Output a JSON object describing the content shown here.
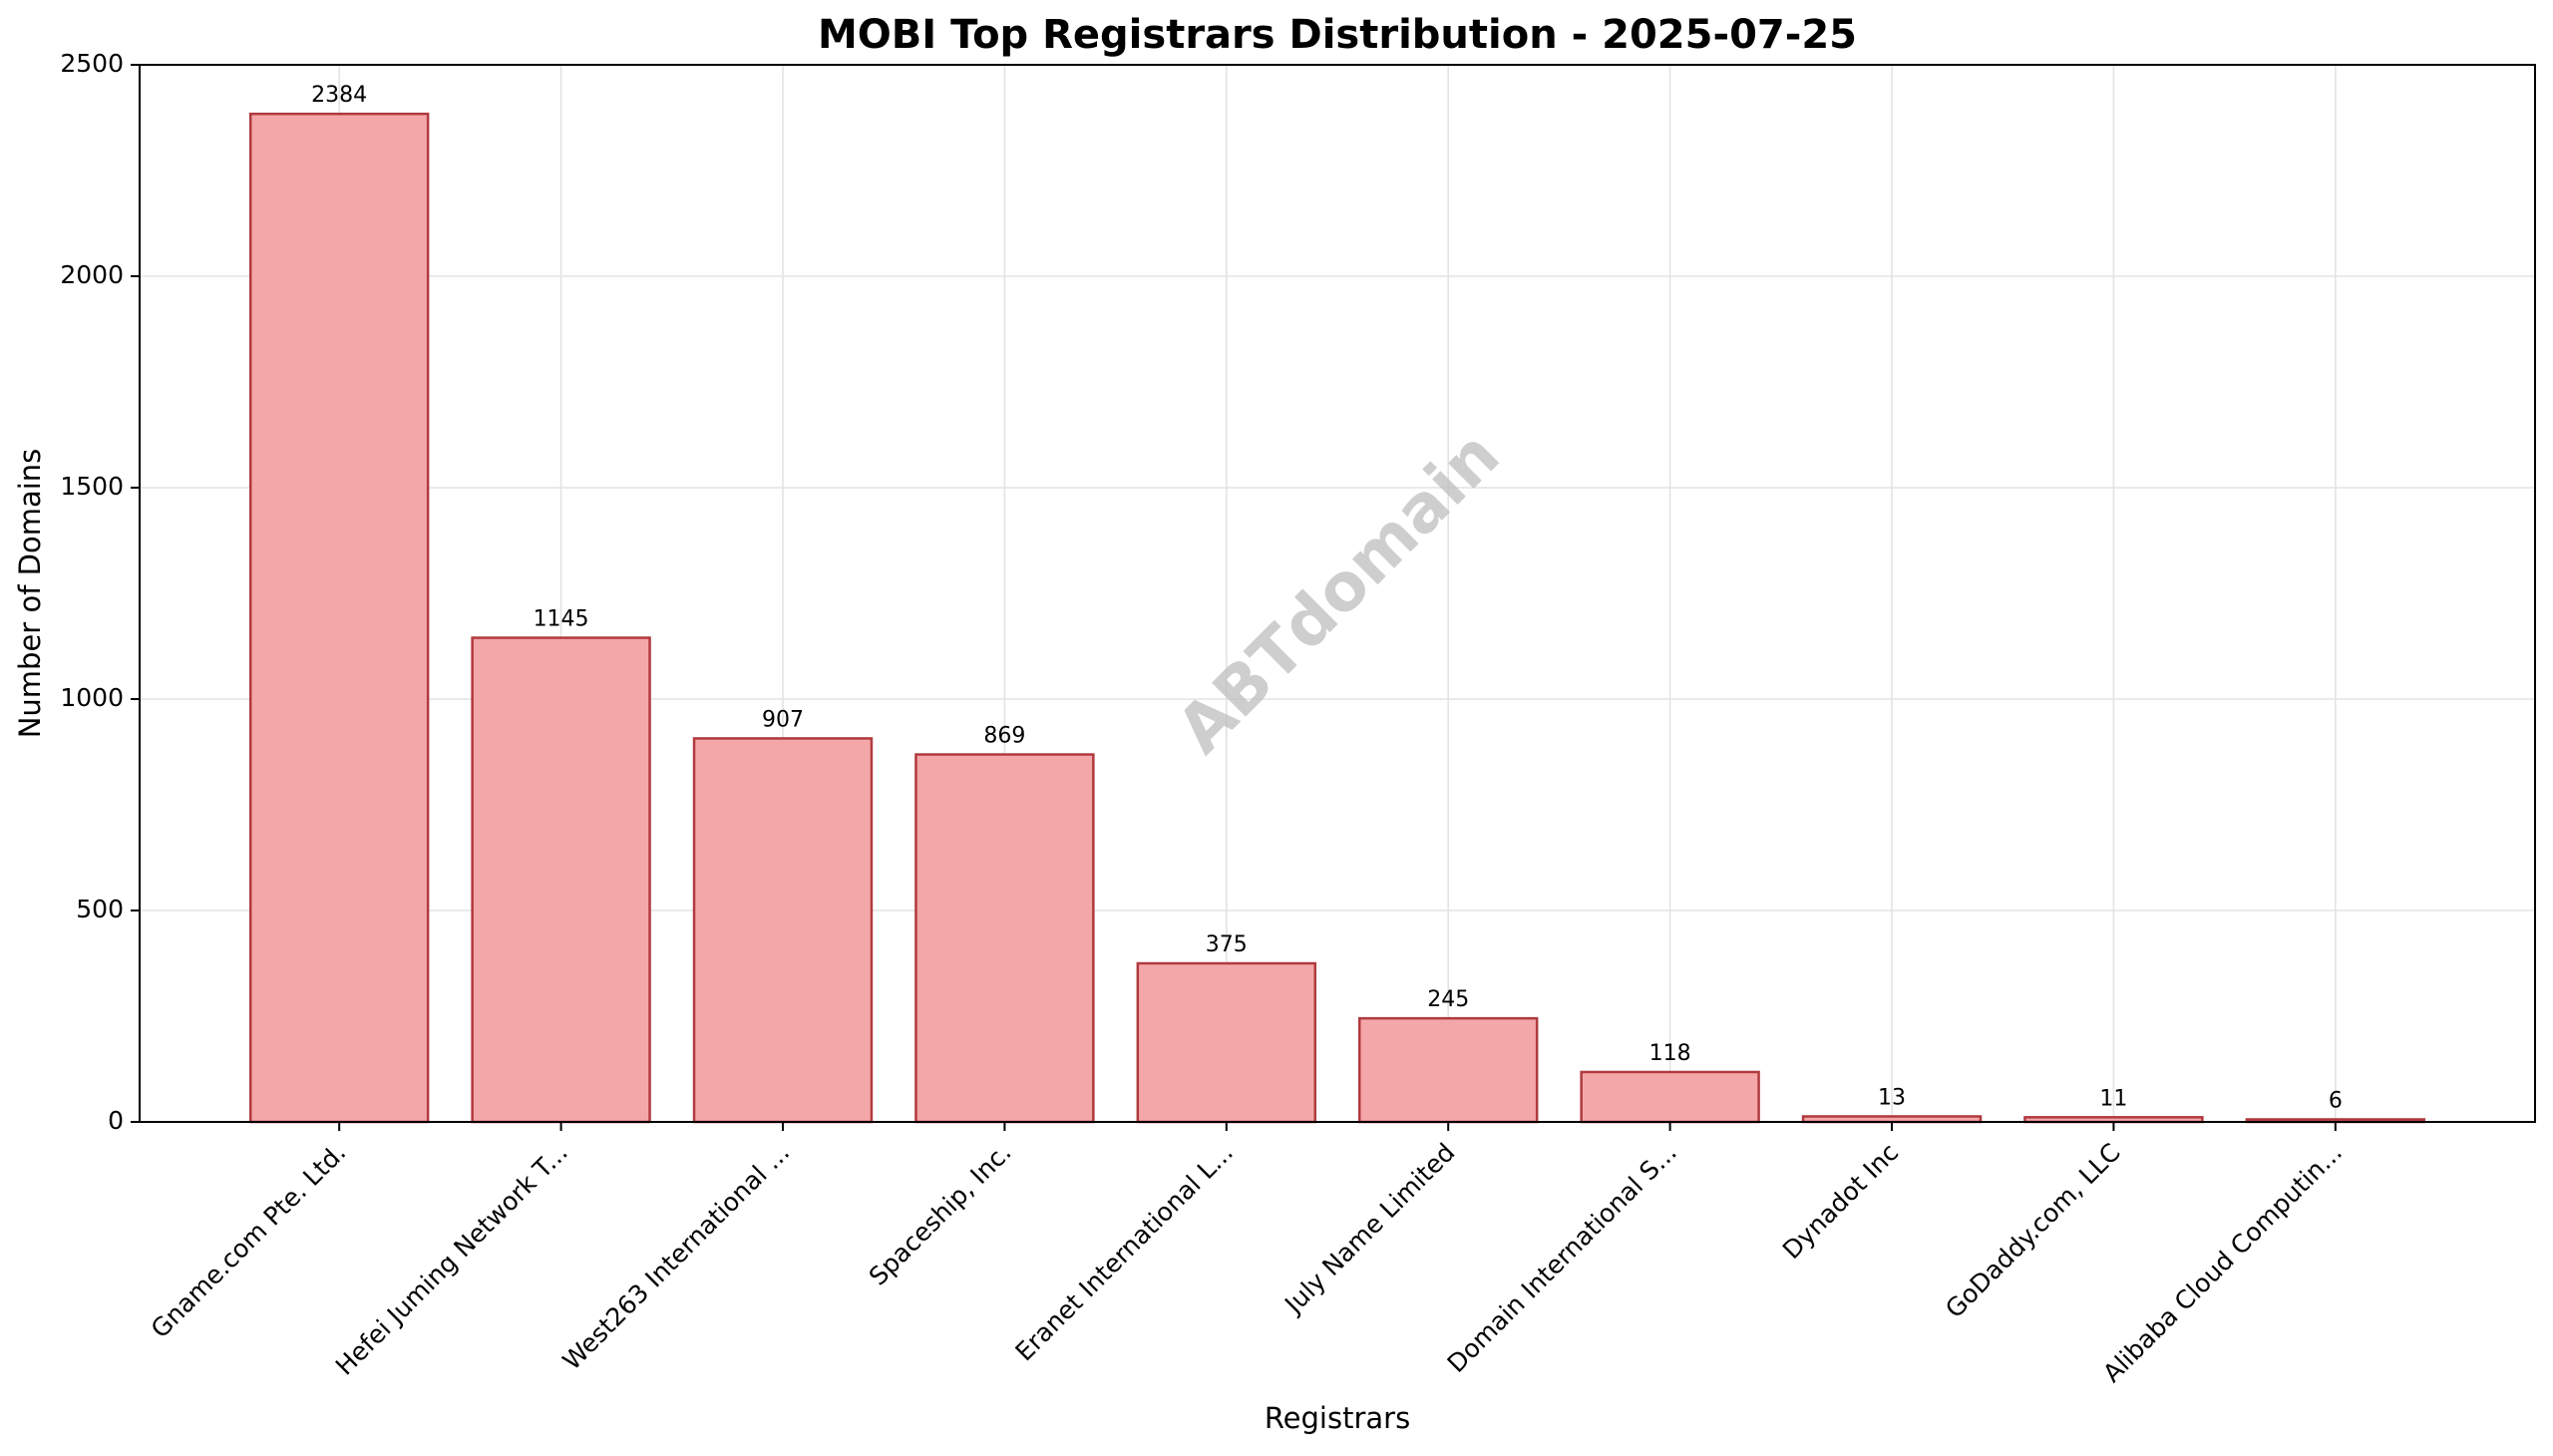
{
  "chart_data": {
    "type": "bar",
    "title": "MOBI Top Registrars Distribution - 2025-07-25",
    "xlabel": "Registrars",
    "ylabel": "Number of Domains",
    "categories": [
      "Gname.com Pte. Ltd.",
      "Hefei Juming Network T...",
      "West263 International ...",
      "Spaceship, Inc.",
      "Eranet International L...",
      "July Name Limited",
      "Domain International S...",
      "Dynadot Inc",
      "GoDaddy.com, LLC",
      "Alibaba Cloud Computin..."
    ],
    "values": [
      2384,
      1145,
      907,
      869,
      375,
      245,
      118,
      13,
      11,
      6
    ],
    "ylim": [
      0,
      2500
    ],
    "yticks": [
      0,
      500,
      1000,
      1500,
      2000,
      2500
    ],
    "grid": true,
    "watermark": "ABTdomain",
    "colors": {
      "bar_fill": "#f4a7a8",
      "bar_edge": "#b03a3e"
    }
  }
}
